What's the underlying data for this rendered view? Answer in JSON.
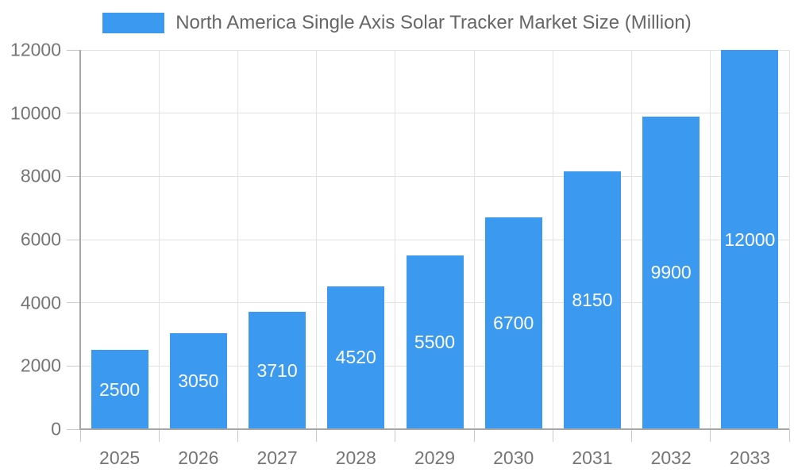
{
  "chart_data": {
    "type": "bar",
    "title": "North America Single Axis Solar Tracker Market Size (Million)",
    "categories": [
      "2025",
      "2026",
      "2027",
      "2028",
      "2029",
      "2030",
      "2031",
      "2032",
      "2033"
    ],
    "values": [
      2500,
      3050,
      3710,
      4520,
      5500,
      6700,
      8150,
      9900,
      12000
    ],
    "xlabel": "",
    "ylabel": "",
    "ylim": [
      0,
      12000
    ],
    "yticks": [
      0,
      2000,
      4000,
      6000,
      8000,
      10000,
      12000
    ],
    "grid": true,
    "legend_position": "top",
    "value_label_position": "inside-center"
  },
  "legend": {
    "label": "North America Single Axis Solar Tracker Market Size (Million)"
  },
  "colors": {
    "bar": "#3b99f0",
    "grid": "#e2e2e2",
    "axis": "#a6a6a6",
    "tick": "#c9c9c9",
    "tick_text": "#757575",
    "legend_text": "#666666",
    "value_text": "#ffffff",
    "background": "#ffffff"
  }
}
